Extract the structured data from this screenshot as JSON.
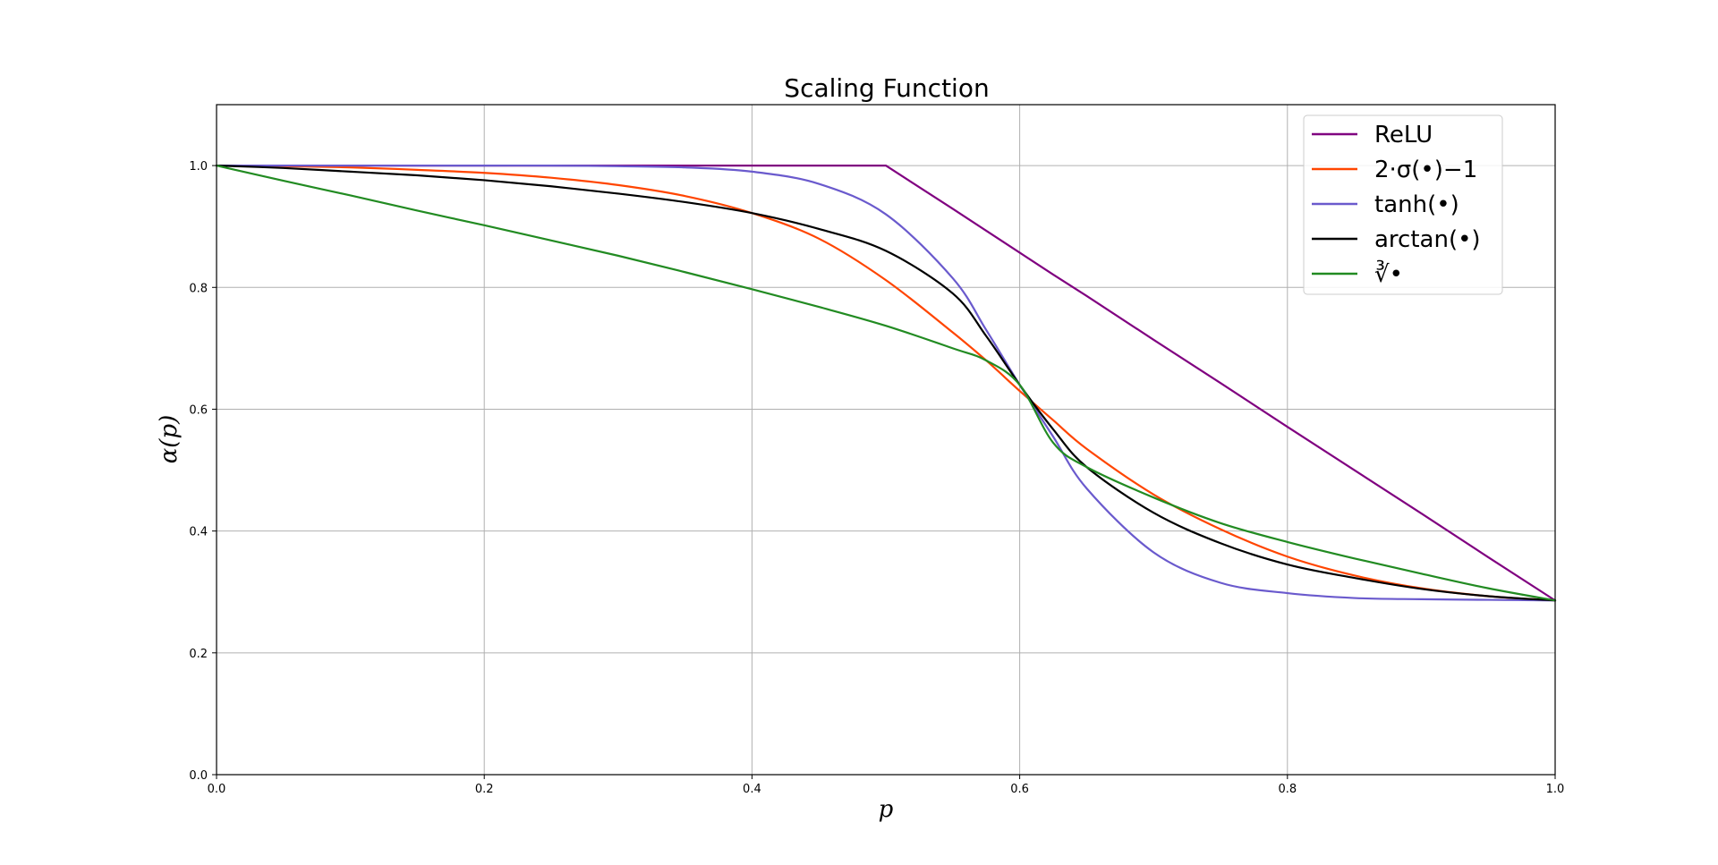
{
  "chart_data": {
    "type": "line",
    "title": "Scaling Function",
    "xlabel": "p",
    "ylabel": "α(p)",
    "xlim": [
      0.0,
      1.0
    ],
    "ylim": [
      0.0,
      1.1
    ],
    "xticks": [
      "0.0",
      "0.2",
      "0.4",
      "0.6",
      "0.8",
      "1.0"
    ],
    "yticks": [
      "0.0",
      "0.2",
      "0.4",
      "0.6",
      "0.8",
      "1.0"
    ],
    "grid": true,
    "legend_position": "top-right",
    "x": [
      0.0,
      0.05,
      0.1,
      0.15,
      0.2,
      0.25,
      0.3,
      0.35,
      0.4,
      0.45,
      0.5,
      0.55,
      0.575,
      0.6,
      0.625,
      0.65,
      0.7,
      0.75,
      0.8,
      0.85,
      0.9,
      0.95,
      1.0
    ],
    "series": [
      {
        "name": "ReLU",
        "color": "#800080",
        "values": [
          1.0,
          1.0,
          1.0,
          1.0,
          1.0,
          1.0,
          1.0,
          1.0,
          1.0,
          1.0,
          1.0,
          0.929,
          0.893,
          0.857,
          0.821,
          0.786,
          0.714,
          0.643,
          0.571,
          0.5,
          0.429,
          0.357,
          0.286
        ]
      },
      {
        "name": "2·σ(•)−1",
        "color": "#FF4500",
        "values": [
          1.0,
          0.999,
          0.997,
          0.993,
          0.988,
          0.98,
          0.968,
          0.95,
          0.922,
          0.88,
          0.812,
          0.726,
          0.68,
          0.63,
          0.582,
          0.535,
          0.46,
          0.403,
          0.358,
          0.327,
          0.306,
          0.293,
          0.286
        ]
      },
      {
        "name": "tanh(•)",
        "color": "#6A5ACD",
        "values": [
          1.0,
          1.0,
          1.0,
          1.0,
          1.0,
          1.0,
          0.999,
          0.997,
          0.99,
          0.97,
          0.92,
          0.815,
          0.73,
          0.64,
          0.555,
          0.47,
          0.365,
          0.315,
          0.298,
          0.29,
          0.288,
          0.287,
          0.286
        ]
      },
      {
        "name": "arctan(•)",
        "color": "#000000",
        "values": [
          1.0,
          0.996,
          0.99,
          0.984,
          0.976,
          0.966,
          0.954,
          0.94,
          0.922,
          0.896,
          0.86,
          0.79,
          0.72,
          0.64,
          0.567,
          0.505,
          0.43,
          0.38,
          0.345,
          0.323,
          0.305,
          0.293,
          0.286
        ]
      },
      {
        "name": "∛•",
        "color": "#228B22",
        "values": [
          1.0,
          0.975,
          0.951,
          0.926,
          0.902,
          0.877,
          0.852,
          0.825,
          0.797,
          0.768,
          0.737,
          0.7,
          0.68,
          0.64,
          0.545,
          0.505,
          0.455,
          0.413,
          0.382,
          0.355,
          0.33,
          0.306,
          0.286
        ]
      }
    ]
  }
}
